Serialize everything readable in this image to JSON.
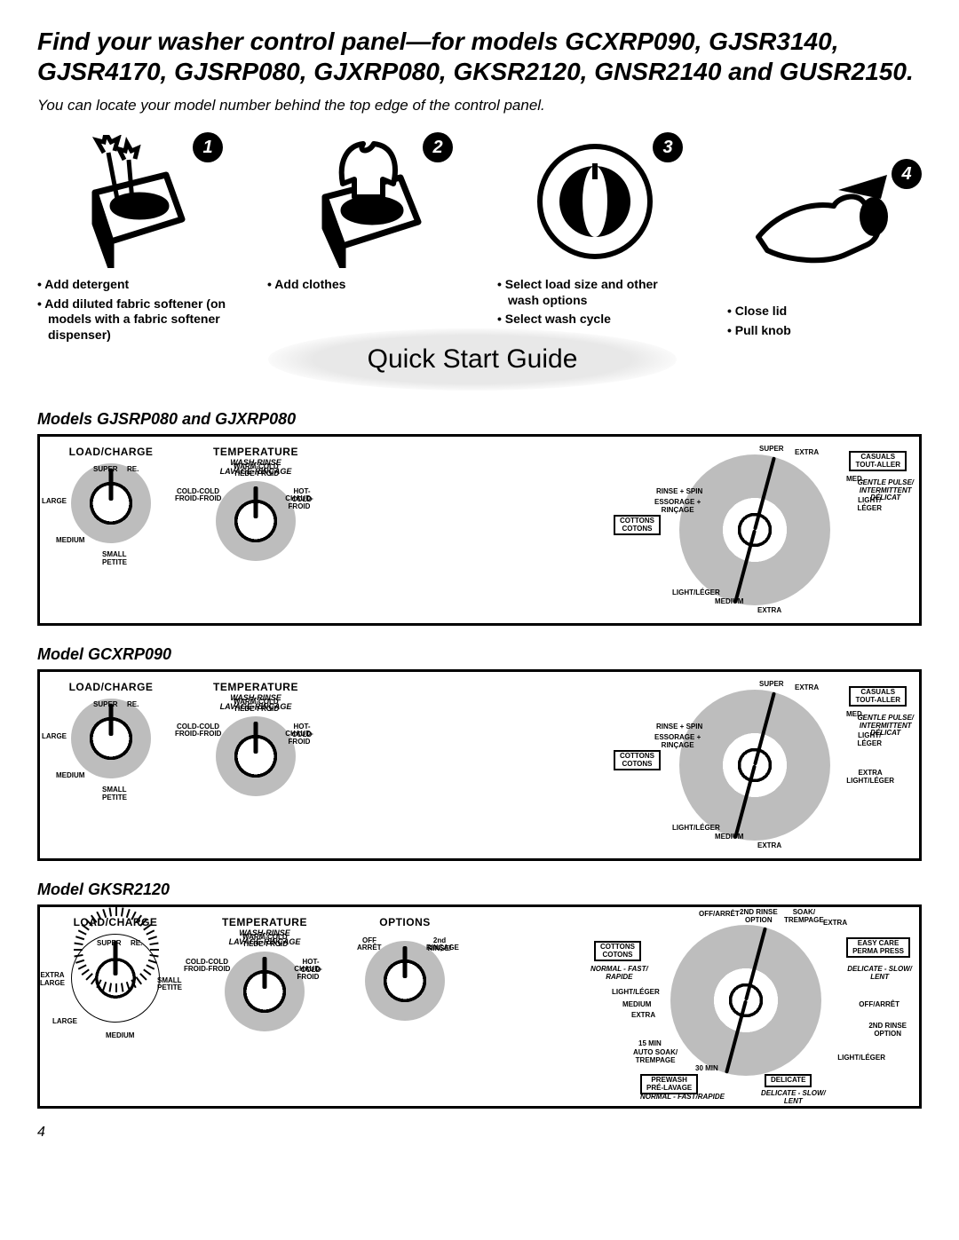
{
  "title": "Find your washer control panel—for models GCXRP090, GJSR3140, GJSR4170, GJSRP080, GJXRP080, GKSR2120, GNSR2140 and GUSR2150.",
  "subtitle": "You can locate your model number behind the top edge of the control panel.",
  "steps": {
    "s1": {
      "num": "1",
      "b1": "Add detergent",
      "b2": "Add diluted fabric softener (on models with a fabric softener dispenser)"
    },
    "s2": {
      "num": "2",
      "b1": "Add clothes"
    },
    "s3": {
      "num": "3",
      "b1": "Select load size and other wash options",
      "b2": "Select wash cycle"
    },
    "s4": {
      "num": "4",
      "b1": "Close lid",
      "b2": "Pull knob"
    }
  },
  "qsg": "Quick Start Guide",
  "panels": {
    "p1": {
      "heading": "Models GJSRP080 and GJXRP080"
    },
    "p2": {
      "heading": "Model GCXRP090"
    },
    "p3": {
      "heading": "Model GKSR2120"
    }
  },
  "dial_labels": {
    "load": "LOAD/CHARGE",
    "temp": "TEMPERATURE",
    "temp_sub1": "WASH-RINSE",
    "temp_sub2": "LAVAGE-RINÇAGE",
    "options": "OPTIONS",
    "load_opts": {
      "super": "SUPER",
      "re": "RE.",
      "large": "LARGE",
      "medium": "MEDIUM",
      "small": "SMALL",
      "petite": "PETITE",
      "extra_large": "EXTRA\nLARGE"
    },
    "temp_opts": {
      "warm_cold": "WARM-COLD",
      "tiede_froid": "TIÈDE-FROID",
      "cold_cold": "COLD-COLD",
      "froid_froid": "FROID-FROID",
      "hot_cold": "HOT-COLD",
      "chaud_froid": "CHAUD-FROID"
    },
    "options_opts": {
      "off": "OFF",
      "arret": "ARRÊT",
      "second_rinse": "2nd RINSE/",
      "rincage": "RINÇAGE"
    }
  },
  "cycle": {
    "cottons": "COTTONS",
    "cotons": "COTONS",
    "casuals": "CASUALS",
    "tout_aller": "TOUT-ALLER",
    "easy_care": "EASY CARE",
    "perma_press": "PERMA PRESS",
    "prewash": "PREWASH",
    "pre_lavage": "PRÉ-LAVAGE",
    "delicate": "DELICATE",
    "super": "SUPER",
    "extra": "EXTRA",
    "med": "MED.",
    "gentle": "GENTLE PULSE/",
    "intermittent": "INTERMITTENT",
    "light_leger": "LIGHT/\nLÉGER",
    "delicat": "DÉLICAT",
    "rinse_spin": "RINSE + SPIN",
    "essorage": "ESSORAGE +\nRINÇAGE",
    "light_leger2": "LIGHT/LÉGER",
    "medium": "MEDIUM",
    "extra_light": "EXTRA\nLIGHT/LÉGER",
    "normal_fast": "NORMAL - FAST/\nRAPIDE",
    "off_arret": "OFF/ARRÊT",
    "second_rinse_opt": "2ND RINSE\nOPTION",
    "soak_trempage": "SOAK/\nTREMPAGE",
    "del_slow": "DELICATE - SLOW/\nLENT",
    "fifteen": "15 MIN",
    "thirty": "30 MIN",
    "auto_soak": "AUTO SOAK/\nTREMPAGE",
    "normal_fast_rapide": "NORMAL - FAST/RAPIDE"
  },
  "page": "4"
}
